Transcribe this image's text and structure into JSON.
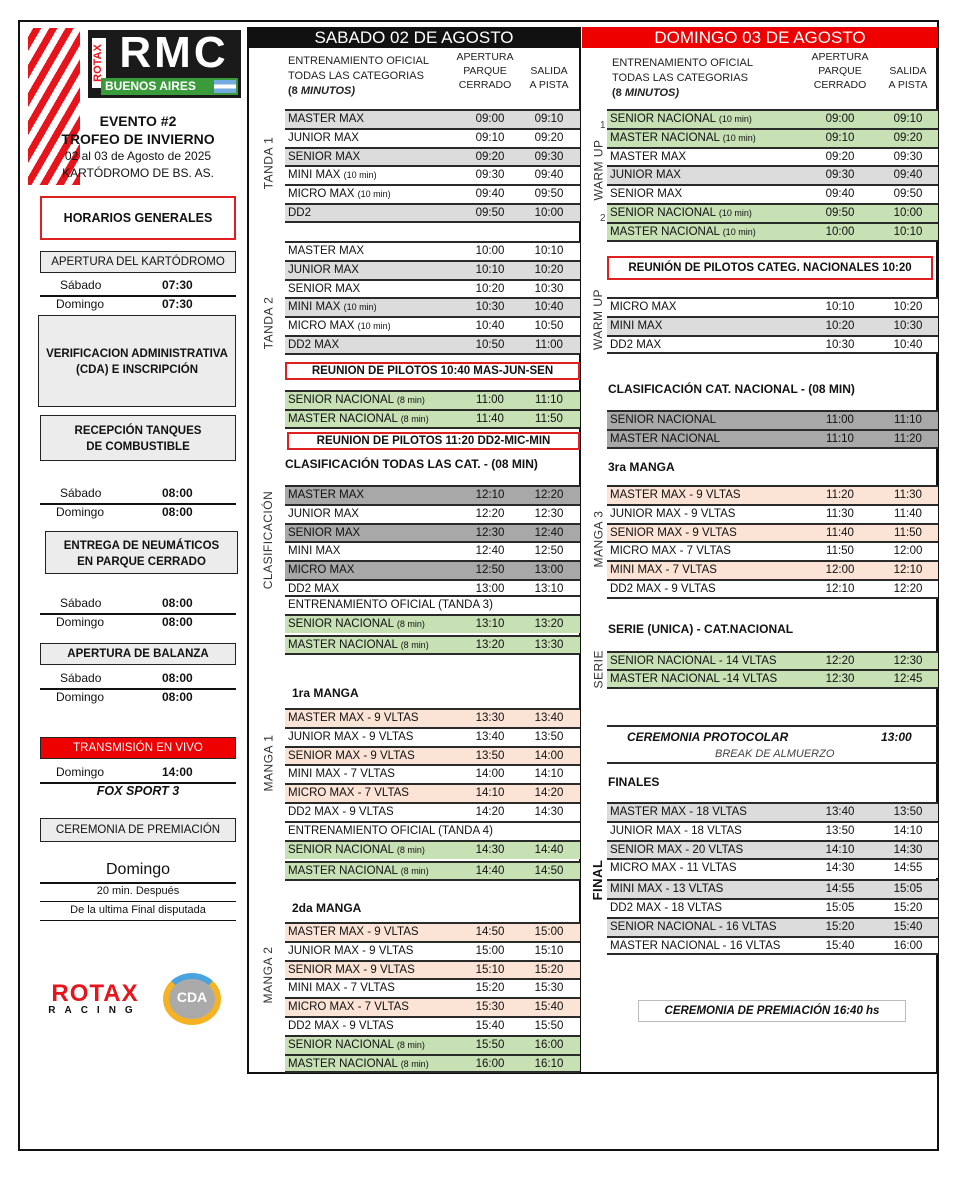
{
  "logos": {
    "rmc": "RMC",
    "rotax_vertical": "ROTAX",
    "city": "BUENOS AIRES",
    "rotax_racing": "ROTAX",
    "racing": "RACING",
    "cda": "CDA",
    "cda_ring": "KARTING"
  },
  "event": {
    "number": "EVENTO #2",
    "name": "TROFEO DE INVIERNO",
    "dates": "02 al 03 de Agosto de 2025",
    "venue": "KARTÓDROMO DE BS. AS."
  },
  "left": {
    "horarios": "HORARIOS GENERALES",
    "apertura_kartodromo": {
      "label": "APERTURA DEL KARTÓDROMO",
      "sabado": "Sábado",
      "sabado_time": "07:30",
      "domingo": "Domingo",
      "domingo_time": "07:30"
    },
    "verificacion": {
      "line1": "VERIFICACION ADMINISTRATIVA",
      "line2": "(CDA) E INSCRIPCIÓN"
    },
    "recepcion": {
      "line1": "RECEPCIÓN TANQUES",
      "line2": "DE COMBUSTIBLE",
      "sabado": "Sábado",
      "sabado_time": "08:00",
      "domingo": "Domingo",
      "domingo_time": "08:00"
    },
    "neumaticos": {
      "line1": "ENTREGA DE NEUMÁTICOS",
      "line2": "EN PARQUE CERRADO",
      "sabado": "Sábado",
      "sabado_time": "08:00",
      "domingo": "Domingo",
      "domingo_time": "08:00"
    },
    "balanza": {
      "label": "APERTURA DE BALANZA",
      "sabado": "Sábado",
      "sabado_time": "08:00",
      "domingo": "Domingo",
      "domingo_time": "08:00"
    },
    "transmision": {
      "label": "TRANSMISIÓN EN VIVO",
      "domingo": "Domingo",
      "time": "14:00",
      "channel": "FOX SPORT 3"
    },
    "premiacion": {
      "label": "CEREMONIA DE PREMIACIÓN",
      "day": "Domingo",
      "line1": "20 min. Después",
      "line2": "De la ultima Final disputada"
    }
  },
  "colors": {
    "red": "#e8141b",
    "black": "#111111",
    "gray": "#dcdcdc",
    "dark_gray": "#a8a8a8",
    "peach": "#fbe3d5",
    "green": "#c7e1b5"
  },
  "sabado": {
    "title": "SABADO 02 DE AGOSTO",
    "header": {
      "line1": "ENTRENAMIENTO OFICIAL",
      "line2": "TODAS LAS CATEGORIAS",
      "line3a": "(8 ",
      "line3b": "MINUTOS)",
      "apertura": [
        "APERTURA",
        "PARQUE",
        "CERRADO"
      ],
      "salida": [
        "SALIDA",
        "A PISTA"
      ]
    },
    "tanda1": {
      "label": "TANDA  1",
      "rows": [
        {
          "name": "MASTER MAX",
          "ap": "09:00",
          "sal": "09:10",
          "shade": "gray"
        },
        {
          "name": "JUNIOR MAX",
          "ap": "09:10",
          "sal": "09:20",
          "shade": "white"
        },
        {
          "name": "SENIOR MAX",
          "ap": "09:20",
          "sal": "09:30",
          "shade": "gray"
        },
        {
          "name": "MINI MAX",
          "note": "(10 min)",
          "ap": "09:30",
          "sal": "09:40",
          "shade": "white"
        },
        {
          "name": "MICRO MAX",
          "note": "(10 min)",
          "ap": "09:40",
          "sal": "09:50",
          "shade": "white"
        },
        {
          "name": "DD2",
          "ap": "09:50",
          "sal": "10:00",
          "shade": "gray"
        }
      ]
    },
    "tanda2": {
      "label": "TANDA  2",
      "rows": [
        {
          "name": "MASTER MAX",
          "ap": "10:00",
          "sal": "10:10",
          "shade": "white"
        },
        {
          "name": "JUNIOR MAX",
          "ap": "10:10",
          "sal": "10:20",
          "shade": "gray"
        },
        {
          "name": "SENIOR MAX",
          "ap": "10:20",
          "sal": "10:30",
          "shade": "white"
        },
        {
          "name": "MINI MAX",
          "note": "(10 min)",
          "ap": "10:30",
          "sal": "10:40",
          "shade": "gray"
        },
        {
          "name": "MICRO MAX",
          "note": "(10 min)",
          "ap": "10:40",
          "sal": "10:50",
          "shade": "white"
        },
        {
          "name": "DD2 MAX",
          "ap": "10:50",
          "sal": "11:00",
          "shade": "gray"
        }
      ]
    },
    "reunion1": "REUNION DE PILOTOS 10:40  MAS-JUN-SEN",
    "nacional1": {
      "rows": [
        {
          "name": "SENIOR NACIONAL",
          "note": "(8 min)",
          "ap": "11:00",
          "sal": "11:10",
          "shade": "green"
        },
        {
          "name": "MASTER NACIONAL",
          "note": "(8 min)",
          "ap": "11:40",
          "sal": "11:50",
          "shade": "green"
        }
      ]
    },
    "reunion2": "REUNION DE PILOTOS 11:20 DD2-MIC-MIN",
    "clasif_title": "CLASIFICACIÓN TODAS LAS CAT. - (08 MIN)",
    "clasif": {
      "label": "CLASIFICACIÓN",
      "rows": [
        {
          "name": "MASTER MAX",
          "ap": "12:10",
          "sal": "12:20",
          "shade": "dark"
        },
        {
          "name": "JUNIOR MAX",
          "ap": "12:20",
          "sal": "12:30",
          "shade": "white"
        },
        {
          "name": "SENIOR MAX",
          "ap": "12:30",
          "sal": "12:40",
          "shade": "dark"
        },
        {
          "name": "MINI MAX",
          "ap": "12:40",
          "sal": "12:50",
          "shade": "white"
        },
        {
          "name": "MICRO MAX",
          "ap": "12:50",
          "sal": "13:00",
          "shade": "dark"
        },
        {
          "name": "DD2 MAX",
          "ap": "13:00",
          "sal": "13:10",
          "shade": "white"
        },
        {
          "name": "ENTRENAMIENTO OFICIAL (TANDA 3)",
          "shade": "white"
        },
        {
          "name": "SENIOR NACIONAL",
          "note": "(8 min)",
          "ap": "13:10",
          "sal": "13:20",
          "shade": "green"
        },
        {
          "name": "MASTER NACIONAL",
          "note": "(8 min)",
          "ap": "13:20",
          "sal": "13:30",
          "shade": "green"
        }
      ]
    },
    "manga1_title": "1ra MANGA",
    "manga1": {
      "label": "MANGA 1",
      "rows": [
        {
          "name": "MASTER MAX - 9 VLTAS",
          "ap": "13:30",
          "sal": "13:40",
          "shade": "peach"
        },
        {
          "name": "JUNIOR MAX - 9 VLTAS",
          "ap": "13:40",
          "sal": "13:50",
          "shade": "white"
        },
        {
          "name": "SENIOR MAX - 9 VLTAS",
          "ap": "13:50",
          "sal": "14:00",
          "shade": "peach"
        },
        {
          "name": "MINI MAX -    7 VLTAS",
          "ap": "14:00",
          "sal": "14:10",
          "shade": "white"
        },
        {
          "name": "MICRO MAX - 7 VLTAS",
          "ap": "14:10",
          "sal": "14:20",
          "shade": "peach"
        },
        {
          "name": "DD2 MAX -    9 VLTAS",
          "ap": "14:20",
          "sal": "14:30",
          "shade": "white"
        },
        {
          "name": "ENTRENAMIENTO OFICIAL (TANDA 4)",
          "shade": "white"
        },
        {
          "name": "SENIOR NACIONAL",
          "note": "(8 min)",
          "ap": "14:30",
          "sal": "14:40",
          "shade": "green"
        },
        {
          "name": "MASTER NACIONAL",
          "note": "(8 min)",
          "ap": "14:40",
          "sal": "14:50",
          "shade": "green"
        }
      ]
    },
    "manga2_title": "2da MANGA",
    "manga2": {
      "label": "MANGA 2",
      "rows": [
        {
          "name": "MASTER MAX - 9 VLTAS",
          "ap": "14:50",
          "sal": "15:00",
          "shade": "peach"
        },
        {
          "name": "JUNIOR MAX - 9 VLTAS",
          "ap": "15:00",
          "sal": "15:10",
          "shade": "white"
        },
        {
          "name": "SENIOR MAX - 9 VLTAS",
          "ap": "15:10",
          "sal": "15:20",
          "shade": "peach"
        },
        {
          "name": "MINI MAX -    7 VLTAS",
          "ap": "15:20",
          "sal": "15:30",
          "shade": "white"
        },
        {
          "name": "MICRO MAX - 7 VLTAS",
          "ap": "15:30",
          "sal": "15:40",
          "shade": "peach"
        },
        {
          "name": "DD2 MAX -    9 VLTAS",
          "ap": "15:40",
          "sal": "15:50",
          "shade": "white"
        },
        {
          "name": "SENIOR NACIONAL",
          "note": "(8 min)",
          "ap": "15:50",
          "sal": "16:00",
          "shade": "green"
        },
        {
          "name": "MASTER NACIONAL",
          "note": "(8 min)",
          "ap": "16:00",
          "sal": "16:10",
          "shade": "green"
        }
      ]
    }
  },
  "domingo": {
    "title": "DOMINGO 03 DE AGOSTO",
    "header": {
      "line1": "ENTRENAMIENTO OFICIAL",
      "line2": "TODAS LAS CATEGORIAS",
      "line3a": "(8 ",
      "line3b": "MINUTOS)",
      "apertura": [
        "APERTURA",
        "PARQUE",
        "CERRADO"
      ],
      "salida": [
        "SALIDA",
        "A PISTA"
      ]
    },
    "warmup1": {
      "label": "WARM UP",
      "mark1": "1",
      "mark2": "2",
      "rows": [
        {
          "name": "SENIOR NACIONAL",
          "note": "(10 min)",
          "ap": "09:00",
          "sal": "09:10",
          "shade": "green"
        },
        {
          "name": "MASTER NACIONAL",
          "note": "(10 min)",
          "ap": "09:10",
          "sal": "09:20",
          "shade": "green"
        },
        {
          "name": "MASTER MAX",
          "ap": "09:20",
          "sal": "09:30",
          "shade": "white"
        },
        {
          "name": "JUNIOR MAX",
          "ap": "09:30",
          "sal": "09:40",
          "shade": "gray"
        },
        {
          "name": "SENIOR MAX",
          "ap": "09:40",
          "sal": "09:50",
          "shade": "white"
        },
        {
          "name": "SENIOR NACIONAL",
          "note": "(10 min)",
          "ap": "09:50",
          "sal": "10:00",
          "shade": "green"
        },
        {
          "name": "MASTER NACIONAL",
          "note": "(10 min)",
          "ap": "10:00",
          "sal": "10:10",
          "shade": "green"
        }
      ]
    },
    "reunion": "REUNIÓN DE PILOTOS CATEG. NACIONALES  10:20",
    "warmup2": {
      "label": "WARM UP",
      "rows": [
        {
          "name": "MICRO MAX",
          "ap": "10:10",
          "sal": "10:20",
          "shade": "white"
        },
        {
          "name": "MINI MAX",
          "ap": "10:20",
          "sal": "10:30",
          "shade": "gray"
        },
        {
          "name": "DD2 MAX",
          "ap": "10:30",
          "sal": "10:40",
          "shade": "white"
        }
      ]
    },
    "clasif_title": "CLASIFICACIÓN CAT. NACIONAL - (08 MIN)",
    "clasif": {
      "rows": [
        {
          "name": "SENIOR NACIONAL",
          "ap": "11:00",
          "sal": "11:10",
          "shade": "dark"
        },
        {
          "name": "MASTER NACIONAL",
          "ap": "11:10",
          "sal": "11:20",
          "shade": "dark"
        }
      ]
    },
    "manga3_title": "3ra MANGA",
    "manga3": {
      "label": "MANGA 3",
      "rows": [
        {
          "name": "MASTER MAX - 9 VLTAS",
          "ap": "11:20",
          "sal": "11:30",
          "shade": "peach"
        },
        {
          "name": "JUNIOR MAX - 9 VLTAS",
          "ap": "11:30",
          "sal": "11:40",
          "shade": "white"
        },
        {
          "name": "SENIOR MAX - 9 VLTAS",
          "ap": "11:40",
          "sal": "11:50",
          "shade": "peach"
        },
        {
          "name": "MICRO MAX - 7 VLTAS",
          "ap": "11:50",
          "sal": "12:00",
          "shade": "white"
        },
        {
          "name": "MINI MAX -    7 VLTAS",
          "ap": "12:00",
          "sal": "12:10",
          "shade": "peach"
        },
        {
          "name": "DD2 MAX -    9 VLTAS",
          "ap": "12:10",
          "sal": "12:20",
          "shade": "white"
        }
      ]
    },
    "serie_title": "SERIE (UNICA) - CAT.NACIONAL",
    "serie": {
      "label": "SERIE",
      "rows": [
        {
          "name": "SENIOR NACIONAL - 14 VLTAS",
          "ap": "12:20",
          "sal": "12:30",
          "shade": "green"
        },
        {
          "name": "MASTER NACIONAL -14 VLTAS",
          "ap": "12:30",
          "sal": "12:45",
          "shade": "green"
        }
      ]
    },
    "ceremonia": {
      "label": "CEREMONIA PROTOCOLAR",
      "time": "13:00",
      "break": "BREAK DE ALMUERZO"
    },
    "finales_title": "FINALES",
    "finales": {
      "label": "FINAL",
      "rows": [
        {
          "name": "MASTER MAX - 18 VLTAS",
          "ap": "13:40",
          "sal": "13:50",
          "shade": "gray"
        },
        {
          "name": "JUNIOR MAX -  18 VLTAS",
          "ap": "13:50",
          "sal": "14:10",
          "shade": "white"
        },
        {
          "name": "SENIOR MAX -  20 VLTAS",
          "ap": "14:10",
          "sal": "14:30",
          "shade": "gray"
        },
        {
          "name": "MICRO MAX -  11 VLTAS",
          "ap": "14:30",
          "sal": "14:55",
          "shade": "white"
        },
        {
          "name": "MINI MAX -    13 VLTAS",
          "ap": "14:55",
          "sal": "15:05",
          "shade": "gray"
        },
        {
          "name": "DD2 MAX -     18 VLTAS",
          "ap": "15:05",
          "sal": "15:20",
          "shade": "white"
        },
        {
          "name": "SENIOR NACIONAL - 16 VLTAS",
          "ap": "15:20",
          "sal": "15:40",
          "shade": "gray"
        },
        {
          "name": "MASTER NACIONAL - 16 VLTAS",
          "ap": "15:40",
          "sal": "16:00",
          "shade": "white"
        }
      ]
    },
    "premiacion": "CEREMONIA DE PREMIACIÓN 16:40 hs"
  }
}
